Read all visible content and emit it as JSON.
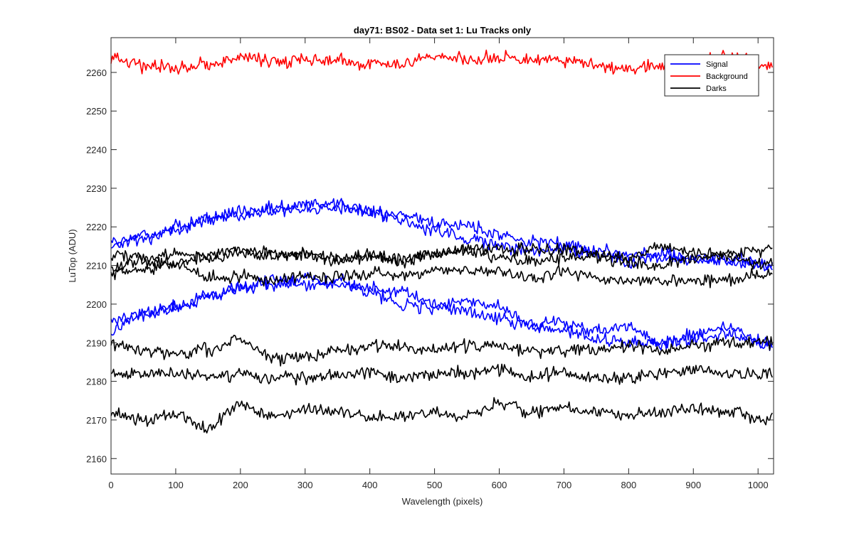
{
  "chart_data": {
    "type": "line",
    "title": "day71: BS02 - Data set 1: Lu Tracks only",
    "xlabel": "Wavelength (pixels)",
    "ylabel": "LuTop (ADU)",
    "xlim": [
      0,
      1024
    ],
    "ylim": [
      2156,
      2269
    ],
    "xticks": [
      0,
      100,
      200,
      300,
      400,
      500,
      600,
      700,
      800,
      900,
      1000
    ],
    "yticks": [
      2160,
      2170,
      2180,
      2190,
      2200,
      2210,
      2220,
      2230,
      2240,
      2250,
      2260
    ],
    "grid": false,
    "legend": {
      "position": "top-right",
      "entries": [
        "Signal",
        "Background",
        "Darks"
      ]
    },
    "series": [
      {
        "name": "Signal",
        "color": "#0000ff",
        "line": 1,
        "x": [
          0,
          50,
          100,
          150,
          200,
          250,
          300,
          350,
          400,
          450,
          500,
          550,
          600,
          650,
          700,
          750,
          800,
          850,
          900,
          950,
          1023
        ],
        "values": [
          2216,
          2217,
          2219,
          2222,
          2223,
          2224,
          2226,
          2226,
          2224,
          2223,
          2221,
          2220,
          2218,
          2216,
          2216,
          2214,
          2213,
          2212,
          2212,
          2211,
          2210
        ]
      },
      {
        "name": "Signal",
        "color": "#0000ff",
        "line": 2,
        "x": [
          0,
          50,
          100,
          150,
          200,
          250,
          300,
          350,
          400,
          450,
          500,
          550,
          600,
          650,
          700,
          750,
          800,
          850,
          900,
          950,
          1023
        ],
        "values": [
          2215,
          2218,
          2220,
          2222,
          2224,
          2225,
          2225,
          2225,
          2224,
          2222,
          2219,
          2217,
          2215,
          2214,
          2214,
          2213,
          2211,
          2213,
          2211,
          2212,
          2210
        ]
      },
      {
        "name": "Signal",
        "color": "#0000ff",
        "line": 3,
        "x": [
          0,
          50,
          100,
          150,
          200,
          250,
          300,
          350,
          400,
          450,
          500,
          550,
          600,
          650,
          700,
          750,
          800,
          850,
          900,
          950,
          1023
        ],
        "values": [
          2196,
          2198,
          2199,
          2202,
          2204,
          2206,
          2205,
          2206,
          2203,
          2200,
          2199,
          2201,
          2199,
          2195,
          2195,
          2193,
          2194,
          2190,
          2191,
          2192,
          2190
        ]
      },
      {
        "name": "Signal",
        "color": "#0000ff",
        "line": 4,
        "x": [
          0,
          50,
          100,
          150,
          200,
          250,
          300,
          350,
          400,
          450,
          500,
          550,
          600,
          650,
          700,
          750,
          800,
          850,
          900,
          950,
          1023
        ],
        "values": [
          2193,
          2197,
          2199,
          2202,
          2204,
          2205,
          2207,
          2205,
          2204,
          2203,
          2200,
          2198,
          2196,
          2194,
          2193,
          2191,
          2190,
          2190,
          2192,
          2194,
          2189
        ]
      },
      {
        "name": "Background",
        "color": "#ff0000",
        "line": 1,
        "x": [
          0,
          50,
          100,
          150,
          200,
          250,
          300,
          350,
          400,
          450,
          500,
          550,
          600,
          650,
          700,
          750,
          800,
          850,
          900,
          950,
          1023
        ],
        "values": [
          2264,
          2262,
          2261,
          2262,
          2264,
          2263,
          2263,
          2263,
          2262,
          2262,
          2264,
          2263,
          2264,
          2263,
          2263,
          2262,
          2261,
          2262,
          2263,
          2264,
          2262
        ]
      },
      {
        "name": "Darks",
        "color": "#000000",
        "line": 1,
        "x": [
          0,
          50,
          100,
          150,
          200,
          250,
          300,
          350,
          400,
          450,
          500,
          550,
          600,
          650,
          700,
          750,
          800,
          850,
          900,
          950,
          1023
        ],
        "values": [
          2213,
          2212,
          2213,
          2213,
          2214,
          2213,
          2213,
          2212,
          2212,
          2211,
          2213,
          2214,
          2214,
          2214,
          2214,
          2213,
          2212,
          2215,
          2213,
          2213,
          2214
        ]
      },
      {
        "name": "Darks",
        "color": "#000000",
        "line": 2,
        "x": [
          0,
          50,
          100,
          150,
          200,
          250,
          300,
          350,
          400,
          450,
          500,
          550,
          600,
          650,
          700,
          750,
          800,
          850,
          900,
          950,
          1023
        ],
        "values": [
          2210,
          2211,
          2211,
          2212,
          2213,
          2212,
          2213,
          2211,
          2213,
          2212,
          2213,
          2214,
          2212,
          2211,
          2212,
          2212,
          2211,
          2210,
          2212,
          2212,
          2210
        ]
      },
      {
        "name": "Darks",
        "color": "#000000",
        "line": 3,
        "x": [
          0,
          50,
          100,
          150,
          200,
          250,
          300,
          350,
          400,
          450,
          500,
          550,
          600,
          650,
          700,
          750,
          800,
          850,
          900,
          950,
          1023
        ],
        "values": [
          2208,
          2209,
          2210,
          2207,
          2207,
          2206,
          2207,
          2207,
          2208,
          2207,
          2209,
          2209,
          2208,
          2207,
          2208,
          2207,
          2206,
          2206,
          2206,
          2206,
          2208
        ]
      },
      {
        "name": "Darks",
        "color": "#000000",
        "line": 4,
        "x": [
          0,
          50,
          100,
          150,
          200,
          250,
          300,
          350,
          400,
          450,
          500,
          550,
          600,
          650,
          700,
          750,
          800,
          850,
          900,
          950,
          1023
        ],
        "values": [
          2190,
          2188,
          2187,
          2188,
          2191,
          2186,
          2186,
          2188,
          2189,
          2189,
          2188,
          2189,
          2189,
          2188,
          2188,
          2188,
          2189,
          2188,
          2189,
          2190,
          2190
        ]
      },
      {
        "name": "Darks",
        "color": "#000000",
        "line": 5,
        "x": [
          0,
          50,
          100,
          150,
          200,
          250,
          300,
          350,
          400,
          450,
          500,
          550,
          600,
          650,
          700,
          750,
          800,
          850,
          900,
          950,
          1023
        ],
        "values": [
          2182,
          2182,
          2182,
          2181,
          2182,
          2181,
          2181,
          2182,
          2182,
          2181,
          2182,
          2182,
          2183,
          2181,
          2182,
          2181,
          2181,
          2182,
          2183,
          2182,
          2182
        ]
      },
      {
        "name": "Darks",
        "color": "#000000",
        "line": 6,
        "x": [
          0,
          50,
          100,
          150,
          200,
          250,
          300,
          350,
          400,
          450,
          500,
          550,
          600,
          650,
          700,
          750,
          800,
          850,
          900,
          950,
          1023
        ],
        "values": [
          2172,
          2170,
          2171,
          2168,
          2174,
          2171,
          2173,
          2172,
          2171,
          2171,
          2172,
          2171,
          2174,
          2172,
          2173,
          2172,
          2171,
          2172,
          2173,
          2172,
          2170
        ]
      }
    ]
  }
}
